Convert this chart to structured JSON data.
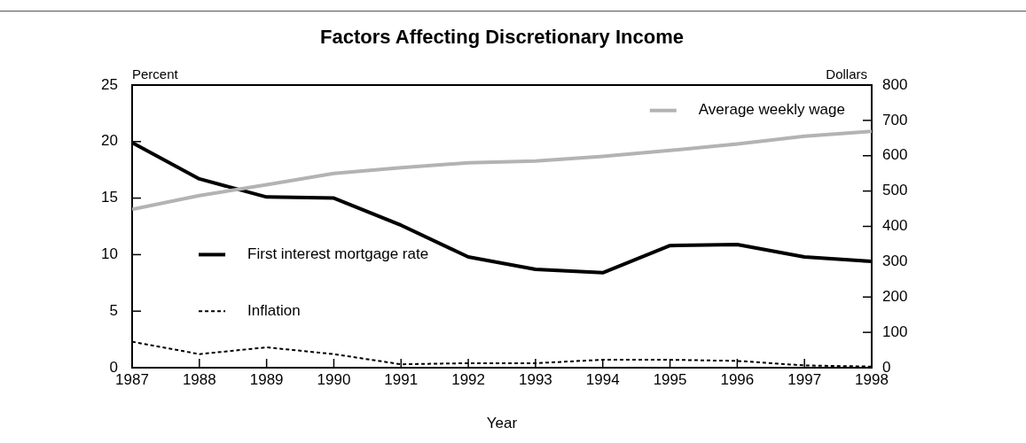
{
  "chart_data": {
    "type": "line",
    "title": "Factors Affecting Discretionary Income",
    "xlabel": "Year",
    "ylabel": "Percent",
    "y2label": "Dollars",
    "x": [
      1987,
      1988,
      1989,
      1990,
      1991,
      1992,
      1993,
      1994,
      1995,
      1996,
      1997,
      1998
    ],
    "xlim": [
      1987,
      1998
    ],
    "xticks": [
      1987,
      1988,
      1989,
      1990,
      1991,
      1992,
      1993,
      1994,
      1995,
      1996,
      1997,
      1998
    ],
    "ylim": [
      0,
      25
    ],
    "yticks": [
      0,
      5,
      10,
      15,
      20,
      25
    ],
    "y2lim": [
      0,
      800
    ],
    "y2ticks": [
      0,
      100,
      200,
      300,
      400,
      500,
      600,
      700,
      800
    ],
    "grid": false,
    "legend": "top right",
    "marker": "none",
    "series": [
      {
        "name": "Average weekly wage",
        "color": "#b3b3b3",
        "axis": "y2",
        "line_style": "solid",
        "values": [
          448,
          487,
          518,
          550,
          566,
          580,
          585,
          598,
          615,
          633,
          655,
          669
        ]
      },
      {
        "name": "First interest mortgage rate",
        "color": "#000000",
        "line_style": "solid",
        "values": [
          19.9,
          16.7,
          15.1,
          15.0,
          12.6,
          9.8,
          8.7,
          8.4,
          10.8,
          10.9,
          9.8,
          9.4
        ]
      },
      {
        "name": "Inflation",
        "color": "#000000",
        "line_style": "dotted",
        "values": [
          2.3,
          1.2,
          1.8,
          1.2,
          0.3,
          0.4,
          0.4,
          0.7,
          0.7,
          0.6,
          0.2,
          0.1
        ]
      }
    ]
  }
}
